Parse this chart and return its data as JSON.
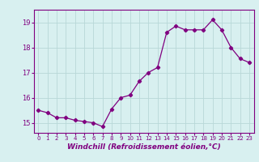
{
  "x": [
    0,
    1,
    2,
    3,
    4,
    5,
    6,
    7,
    8,
    9,
    10,
    11,
    12,
    13,
    14,
    15,
    16,
    17,
    18,
    19,
    20,
    21,
    22,
    23
  ],
  "y": [
    15.5,
    15.4,
    15.2,
    15.2,
    15.1,
    15.05,
    15.0,
    14.85,
    15.55,
    16.0,
    16.1,
    16.65,
    17.0,
    17.2,
    18.6,
    18.85,
    18.7,
    18.7,
    18.7,
    19.1,
    18.7,
    18.0,
    17.55,
    17.4
  ],
  "line_color": "#800080",
  "marker": "D",
  "markersize": 2.2,
  "linewidth": 0.9,
  "bg_color": "#d8f0f0",
  "grid_color": "#b8d8d8",
  "xlabel": "Windchill (Refroidissement éolien,°C)",
  "xlabel_color": "#800080",
  "tick_color": "#800080",
  "ylim": [
    14.6,
    19.5
  ],
  "yticks": [
    15,
    16,
    17,
    18,
    19
  ],
  "xlim": [
    -0.5,
    23.5
  ],
  "xtick_fontsize": 5.0,
  "ytick_fontsize": 6.0,
  "xlabel_fontsize": 6.5
}
